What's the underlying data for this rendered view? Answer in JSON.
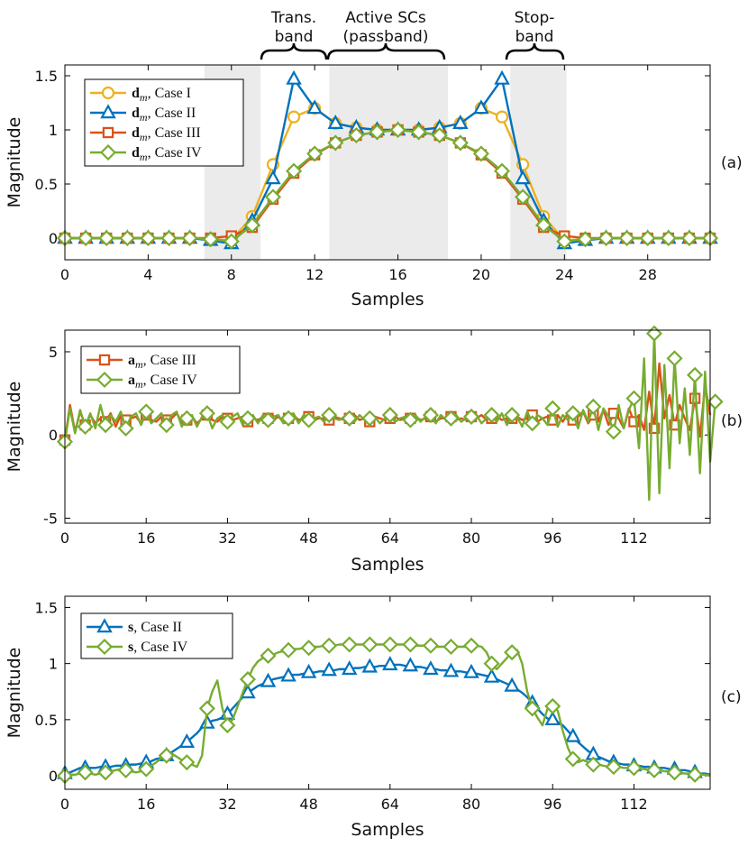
{
  "colors": {
    "case1": "#EDB120",
    "case2": "#0072BD",
    "case3": "#D95319",
    "case4": "#77AC30",
    "shade": "#ebebeb"
  },
  "annotations": {
    "trans_band_line1": "Trans.",
    "trans_band_line2": "band",
    "active_line1": "Active SCs",
    "active_line2": "(passband)",
    "stop_line1": "Stop-",
    "stop_line2": "band"
  },
  "chart_data": [
    {
      "id": "a",
      "type": "line",
      "panel_tag": "(a)",
      "xlabel": "Samples",
      "ylabel": "Magnitude",
      "xlim": [
        0,
        31
      ],
      "ylim": [
        -0.2,
        1.6
      ],
      "xticks": [
        0,
        4,
        8,
        12,
        16,
        20,
        24,
        28
      ],
      "yticks": [
        0,
        0.5,
        1,
        1.5
      ],
      "ytick_labels": [
        "0",
        "0.5",
        "1",
        "1.5"
      ],
      "shaded_regions": [
        [
          6.7,
          9.4
        ],
        [
          12.7,
          18.4
        ],
        [
          21.4,
          24.1
        ]
      ],
      "legend_position": "top-left",
      "x": [
        0,
        1,
        2,
        3,
        4,
        5,
        6,
        7,
        8,
        9,
        10,
        11,
        12,
        13,
        14,
        15,
        16,
        17,
        18,
        19,
        20,
        21,
        22,
        23,
        24,
        25,
        26,
        27,
        28,
        29,
        30,
        31
      ],
      "series": [
        {
          "name_sym": "d",
          "name_sub": "m",
          "name_rest": ", Case I",
          "color_key": "case1",
          "marker": "circle",
          "values": [
            0,
            0,
            0,
            0,
            0,
            0,
            0,
            -0.01,
            -0.02,
            0.2,
            0.68,
            1.12,
            1.2,
            1.06,
            1.02,
            1.0,
            1.0,
            1.0,
            1.02,
            1.06,
            1.2,
            1.12,
            0.68,
            0.2,
            -0.02,
            -0.01,
            0,
            0,
            0,
            0,
            0,
            0
          ]
        },
        {
          "name_sym": "d",
          "name_sub": "m",
          "name_rest": ", Case II",
          "color_key": "case2",
          "marker": "triangle",
          "values": [
            0,
            0,
            0,
            0,
            0,
            0,
            0,
            -0.02,
            -0.05,
            0.16,
            0.55,
            1.47,
            1.2,
            1.06,
            1.02,
            1.0,
            1.0,
            1.0,
            1.02,
            1.06,
            1.2,
            1.47,
            0.55,
            0.16,
            -0.05,
            -0.02,
            0,
            0,
            0,
            0,
            0,
            0
          ]
        },
        {
          "name_sym": "d",
          "name_sub": "m",
          "name_rest": ", Case III",
          "color_key": "case3",
          "marker": "square",
          "values": [
            0,
            0,
            0,
            0,
            0,
            0,
            0,
            0.0,
            0.02,
            0.1,
            0.36,
            0.6,
            0.77,
            0.88,
            0.95,
            0.98,
            1.0,
            0.98,
            0.95,
            0.88,
            0.77,
            0.6,
            0.36,
            0.1,
            0.02,
            0.0,
            0,
            0,
            0,
            0,
            0,
            0
          ]
        },
        {
          "name_sym": "d",
          "name_sub": "m",
          "name_rest": ", Case IV",
          "color_key": "case4",
          "marker": "diamond",
          "values": [
            0,
            0,
            0,
            0,
            0,
            0,
            0,
            -0.01,
            -0.03,
            0.12,
            0.38,
            0.62,
            0.78,
            0.88,
            0.95,
            0.98,
            1.0,
            0.98,
            0.95,
            0.88,
            0.78,
            0.62,
            0.38,
            0.12,
            -0.03,
            -0.01,
            0,
            0,
            0,
            0,
            0,
            0
          ]
        }
      ]
    },
    {
      "id": "b",
      "type": "line",
      "panel_tag": "(b)",
      "xlabel": "Samples",
      "ylabel": "Magnitude",
      "xlim": [
        0,
        127
      ],
      "ylim": [
        -5.3,
        6.3
      ],
      "xticks": [
        0,
        16,
        32,
        48,
        64,
        80,
        96,
        112
      ],
      "yticks": [
        -5,
        0,
        5
      ],
      "ytick_labels": [
        "-5",
        "0",
        "5"
      ],
      "legend_position": "top-left",
      "marker_every": 4,
      "series": [
        {
          "name_sym": "a",
          "name_sub": "m",
          "name_rest": ", Case III",
          "color_key": "case3",
          "marker": "square",
          "values": [
            -0.3,
            1.8,
            0.2,
            1.4,
            0.6,
            1.2,
            0.7,
            1.0,
            0.8,
            1.3,
            0.5,
            1.2,
            0.9,
            1.0,
            1.1,
            0.7,
            1.2,
            0.9,
            0.8,
            1.1,
            0.9,
            1.0,
            1.3,
            0.8,
            0.9,
            1.1,
            0.7,
            1.0,
            1.2,
            0.9,
            0.8,
            1.1,
            1.0,
            0.9,
            1.0,
            1.1,
            0.8,
            1.0,
            0.9,
            1.1,
            1.0,
            0.9,
            1.1,
            0.8,
            1.0,
            1.2,
            0.9,
            1.0,
            1.1,
            0.9,
            1.0,
            1.0,
            0.9,
            1.1,
            1.0,
            0.9,
            1.0,
            1.2,
            0.9,
            1.0,
            0.8,
            1.1,
            1.0,
            0.9,
            1.0,
            1.1,
            0.9,
            1.0,
            1.0,
            1.1,
            0.9,
            1.0,
            1.1,
            0.8,
            1.0,
            1.0,
            1.1,
            0.9,
            1.0,
            0.9,
            1.1,
            1.0,
            1.2,
            0.9,
            1.0,
            1.1,
            0.9,
            1.0,
            1.0,
            1.1,
            0.9,
            1.0,
            1.2,
            0.8,
            1.0,
            1.1,
            0.9,
            1.2,
            0.8,
            1.3,
            0.9,
            1.1,
            1.4,
            0.7,
            1.2,
            0.8,
            1.5,
            0.6,
            1.3,
            1.0,
            0.4,
            1.6,
            0.8,
            1.2,
            0.3,
            2.6,
            0.4,
            4.3,
            1.0,
            2.4,
            0.6,
            1.8,
            1.0,
            0.3,
            2.2,
            -0.1,
            3.0,
            1.2
          ]
        },
        {
          "name_sym": "a",
          "name_sub": "m",
          "name_rest": ", Case IV",
          "color_key": "case4",
          "marker": "diamond",
          "values": [
            -0.4,
            1.6,
            0.1,
            1.5,
            0.5,
            1.3,
            0.4,
            1.8,
            0.6,
            1.2,
            0.8,
            1.4,
            0.4,
            1.1,
            1.3,
            0.6,
            1.4,
            0.7,
            1.0,
            1.3,
            0.6,
            1.2,
            1.4,
            0.5,
            1.0,
            1.2,
            0.5,
            1.1,
            1.3,
            0.4,
            1.0,
            1.2,
            0.8,
            1.1,
            1.3,
            0.6,
            1.0,
            1.2,
            0.7,
            1.2,
            0.9,
            1.1,
            1.2,
            0.7,
            1.0,
            1.3,
            0.7,
            1.2,
            0.9,
            1.0,
            1.1,
            0.8,
            1.2,
            1.0,
            0.9,
            1.1,
            1.0,
            0.8,
            1.2,
            0.9,
            1.0,
            1.1,
            0.7,
            1.0,
            1.2,
            0.8,
            1.0,
            1.1,
            0.9,
            1.2,
            0.8,
            1.1,
            1.2,
            0.7,
            1.2,
            0.9,
            1.0,
            1.2,
            0.8,
            1.0,
            1.1,
            1.2,
            0.7,
            1.0,
            1.2,
            0.8,
            1.3,
            0.6,
            1.2,
            1.1,
            0.5,
            1.4,
            0.7,
            1.2,
            1.0,
            0.6,
            1.6,
            0.5,
            1.2,
            0.9,
            1.3,
            0.4,
            1.5,
            0.8,
            1.7,
            0.3,
            1.6,
            1.1,
            0.2,
            1.8,
            0.4,
            1.5,
            2.2,
            -0.8,
            4.6,
            -3.9,
            6.1,
            -3.5,
            4.2,
            -2.0,
            4.6,
            -0.5,
            2.8,
            -1.2,
            3.6,
            -2.3,
            3.8,
            -1.6,
            2.0
          ]
        }
      ]
    },
    {
      "id": "c",
      "type": "line",
      "panel_tag": "(c)",
      "xlabel": "Samples",
      "ylabel": "Magnitude",
      "xlim": [
        0,
        127
      ],
      "ylim": [
        -0.12,
        1.6
      ],
      "xticks": [
        0,
        16,
        32,
        48,
        64,
        80,
        96,
        112
      ],
      "yticks": [
        0,
        0.5,
        1,
        1.5
      ],
      "ytick_labels": [
        "0",
        "0.5",
        "1",
        "1.5"
      ],
      "legend_position": "top-left",
      "marker_every": 4,
      "series": [
        {
          "name_sym": "s",
          "name_sub": "",
          "name_rest": ", Case II",
          "color_key": "case2",
          "marker": "triangle",
          "values": [
            0.02,
            0.03,
            0.05,
            0.07,
            0.07,
            0.07,
            0.07,
            0.08,
            0.08,
            0.08,
            0.09,
            0.09,
            0.09,
            0.1,
            0.1,
            0.11,
            0.12,
            0.13,
            0.15,
            0.16,
            0.18,
            0.21,
            0.24,
            0.27,
            0.3,
            0.34,
            0.38,
            0.43,
            0.47,
            0.49,
            0.5,
            0.52,
            0.55,
            0.6,
            0.65,
            0.7,
            0.74,
            0.77,
            0.8,
            0.82,
            0.84,
            0.86,
            0.87,
            0.88,
            0.89,
            0.9,
            0.9,
            0.91,
            0.92,
            0.92,
            0.93,
            0.93,
            0.94,
            0.94,
            0.95,
            0.95,
            0.95,
            0.96,
            0.96,
            0.97,
            0.97,
            0.97,
            0.98,
            0.98,
            0.99,
            0.99,
            0.99,
            0.98,
            0.98,
            0.97,
            0.97,
            0.96,
            0.95,
            0.95,
            0.94,
            0.94,
            0.93,
            0.93,
            0.93,
            0.92,
            0.92,
            0.91,
            0.9,
            0.89,
            0.88,
            0.86,
            0.84,
            0.82,
            0.8,
            0.77,
            0.74,
            0.7,
            0.65,
            0.6,
            0.55,
            0.51,
            0.5,
            0.48,
            0.45,
            0.4,
            0.35,
            0.3,
            0.26,
            0.22,
            0.19,
            0.17,
            0.15,
            0.13,
            0.12,
            0.11,
            0.1,
            0.1,
            0.09,
            0.09,
            0.08,
            0.08,
            0.07,
            0.07,
            0.07,
            0.06,
            0.06,
            0.05,
            0.05,
            0.04,
            0.03,
            0.02,
            0.02,
            0.01
          ]
        },
        {
          "name_sym": "s",
          "name_sub": "",
          "name_rest": ", Case IV",
          "color_key": "case4",
          "marker": "diamond",
          "values": [
            0.0,
            0.01,
            0.01,
            0.02,
            0.03,
            0.02,
            0.01,
            0.02,
            0.03,
            0.04,
            0.05,
            0.06,
            0.05,
            0.04,
            0.03,
            0.04,
            0.06,
            0.09,
            0.12,
            0.16,
            0.18,
            0.2,
            0.17,
            0.14,
            0.12,
            0.1,
            0.08,
            0.18,
            0.6,
            0.75,
            0.85,
            0.6,
            0.45,
            0.5,
            0.62,
            0.74,
            0.86,
            0.96,
            1.02,
            1.05,
            1.07,
            1.08,
            1.1,
            1.11,
            1.12,
            1.13,
            1.13,
            1.14,
            1.14,
            1.15,
            1.15,
            1.16,
            1.16,
            1.16,
            1.17,
            1.17,
            1.17,
            1.17,
            1.17,
            1.17,
            1.17,
            1.17,
            1.17,
            1.17,
            1.17,
            1.17,
            1.17,
            1.17,
            1.17,
            1.16,
            1.16,
            1.16,
            1.16,
            1.15,
            1.15,
            1.15,
            1.15,
            1.15,
            1.15,
            1.15,
            1.16,
            1.16,
            1.15,
            1.1,
            1.0,
            0.95,
            1.0,
            1.05,
            1.1,
            1.12,
            1.0,
            0.75,
            0.6,
            0.52,
            0.45,
            0.6,
            0.62,
            0.58,
            0.4,
            0.25,
            0.15,
            0.12,
            0.14,
            0.12,
            0.1,
            0.1,
            0.09,
            0.08,
            0.08,
            0.08,
            0.07,
            0.07,
            0.07,
            0.06,
            0.06,
            0.05,
            0.05,
            0.05,
            0.04,
            0.04,
            0.03,
            0.03,
            0.02,
            0.02,
            0.01,
            0.01,
            0.01,
            0.0
          ]
        }
      ]
    }
  ]
}
